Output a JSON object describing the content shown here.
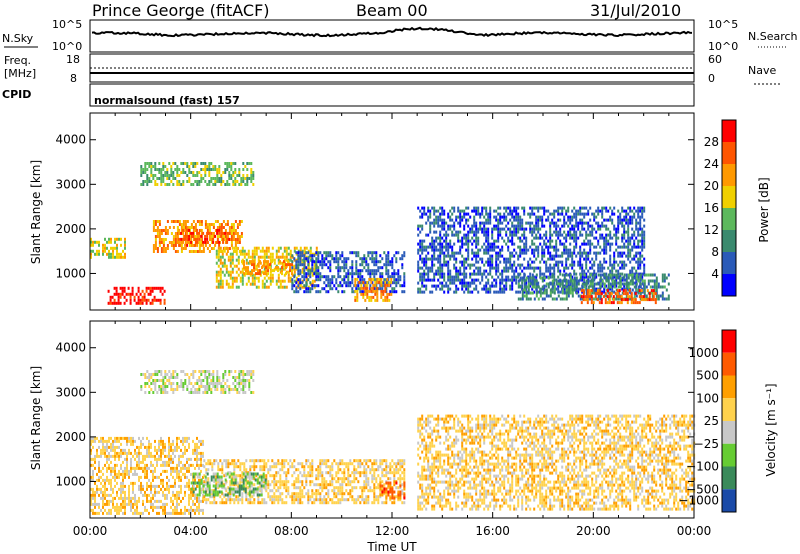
{
  "header": {
    "station": "Prince George (fitACF)",
    "beam": "Beam 00",
    "date": "31/Jul/2010"
  },
  "noise_panel": {
    "left_label": "N.Sky",
    "right_label": "N.Search",
    "tick_top": "10^5",
    "tick_bottom": "10^0"
  },
  "freq_panel": {
    "left_label_1": "Freq.",
    "left_label_2": "[MHz]",
    "left_tick_top": "18",
    "left_tick_bottom": "8",
    "right_label": "Nave",
    "right_tick_top": "60",
    "right_tick_bottom": "0"
  },
  "cpid": {
    "label": "CPID",
    "value": "normalsound (fast) 157"
  },
  "colors": {
    "power": [
      "#0000ff",
      "#2a5ab8",
      "#3a8a6e",
      "#5cb85c",
      "#f0d000",
      "#ff9900",
      "#ff5500",
      "#ff0000"
    ],
    "velocity": [
      "#ff0000",
      "#ff5a00",
      "#ff9f00",
      "#ffd24d",
      "#c8c8c8",
      "#66cc33",
      "#3a8a5a",
      "#1a4aa8"
    ]
  },
  "chart_data": [
    {
      "type": "heatmap",
      "name": "power",
      "ylabel": "Slant Range [km]",
      "ylim": [
        180,
        4600
      ],
      "yticks": [
        "1000",
        "2000",
        "3000",
        "4000"
      ],
      "colorbar_label": "Power [dB]",
      "colorbar_ticks": [
        "4",
        "8",
        "12",
        "16",
        "20",
        "24",
        "28"
      ],
      "xlim": [
        0,
        24
      ],
      "regions": [
        {
          "t": [
            0.7,
            3.0
          ],
          "r": [
            300,
            700
          ],
          "level": 7
        },
        {
          "t": [
            0.0,
            1.4
          ],
          "r": [
            1350,
            1800
          ],
          "level": 4
        },
        {
          "t": [
            2.5,
            6.0
          ],
          "r": [
            1500,
            2200
          ],
          "level": 5
        },
        {
          "t": [
            3.5,
            5.5
          ],
          "r": [
            1600,
            2000
          ],
          "level": 6
        },
        {
          "t": [
            5.0,
            9.0
          ],
          "r": [
            700,
            1600
          ],
          "level": 4
        },
        {
          "t": [
            6.0,
            8.0
          ],
          "r": [
            1000,
            1300
          ],
          "level": 5
        },
        {
          "t": [
            8.0,
            12.5
          ],
          "r": [
            600,
            1500
          ],
          "level": 1
        },
        {
          "t": [
            10.5,
            12.0
          ],
          "r": [
            400,
            900
          ],
          "level": 5
        },
        {
          "t": [
            2.0,
            6.5
          ],
          "r": [
            3000,
            3500
          ],
          "level": 3
        },
        {
          "t": [
            13.0,
            22.0
          ],
          "r": [
            600,
            2500
          ],
          "level": 1
        },
        {
          "t": [
            17.0,
            23.0
          ],
          "r": [
            400,
            1000
          ],
          "level": 2
        },
        {
          "t": [
            19.5,
            22.5
          ],
          "r": [
            350,
            650
          ],
          "level": 6
        }
      ]
    },
    {
      "type": "heatmap",
      "name": "velocity",
      "ylabel": "Slant Range [km]",
      "ylim": [
        180,
        4600
      ],
      "yticks": [
        "1000",
        "2000",
        "3000",
        "4000"
      ],
      "colorbar_label": "Velocity [m s⁻¹]",
      "colorbar_ticks": [
        "1000",
        "500",
        "100",
        "25",
        "−25",
        "−100",
        "−500",
        "−1000"
      ],
      "xlim": [
        0,
        24
      ],
      "xticks": [
        "00:00",
        "04:00",
        "08:00",
        "12:00",
        "16:00",
        "20:00",
        "00:00"
      ],
      "xlabel": "Time UT",
      "regions": [
        {
          "t": [
            0.0,
            4.5
          ],
          "r": [
            300,
            2000
          ],
          "level": 4
        },
        {
          "t": [
            4.5,
            12.5
          ],
          "r": [
            500,
            1500
          ],
          "level": 4
        },
        {
          "t": [
            4.0,
            7.0
          ],
          "r": [
            700,
            1200
          ],
          "level": 2
        },
        {
          "t": [
            2.0,
            6.5
          ],
          "r": [
            3000,
            3500
          ],
          "level": 3
        },
        {
          "t": [
            13.0,
            24.0
          ],
          "r": [
            400,
            2500
          ],
          "level": 4
        },
        {
          "t": [
            11.5,
            12.5
          ],
          "r": [
            600,
            1000
          ],
          "level": 6
        }
      ]
    }
  ]
}
